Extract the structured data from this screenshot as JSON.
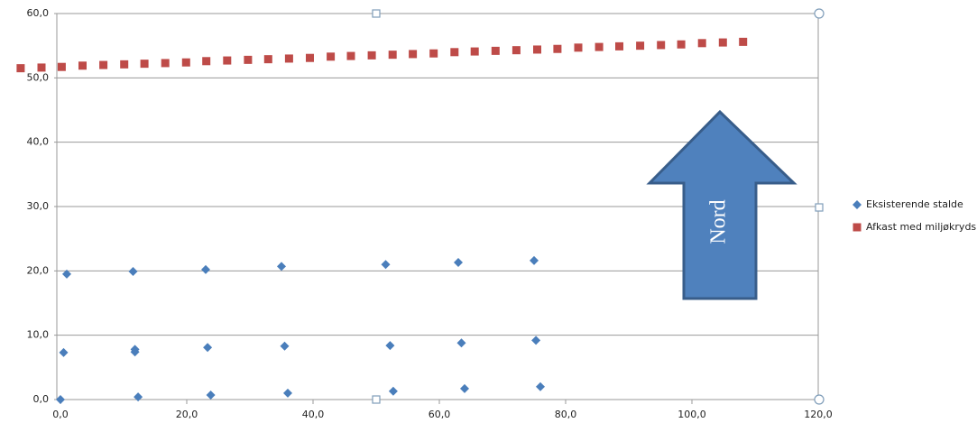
{
  "chart_data": {
    "type": "scatter",
    "xlim": [
      0,
      120
    ],
    "ylim": [
      0,
      60
    ],
    "xticks": [
      {
        "value": 0,
        "label": "0,0"
      },
      {
        "value": 20,
        "label": "20,0"
      },
      {
        "value": 40,
        "label": "40,0"
      },
      {
        "value": 60,
        "label": "60,0"
      },
      {
        "value": 80,
        "label": "80,0"
      },
      {
        "value": 100,
        "label": "100,0"
      },
      {
        "value": 120,
        "label": "120,0"
      }
    ],
    "yticks": [
      {
        "value": 0,
        "label": "0,0"
      },
      {
        "value": 10,
        "label": "10,0"
      },
      {
        "value": 20,
        "label": "20,0"
      },
      {
        "value": 30,
        "label": "30,0"
      },
      {
        "value": 40,
        "label": "40,0"
      },
      {
        "value": 50,
        "label": "50,0"
      },
      {
        "value": 60,
        "label": "60,0"
      }
    ],
    "grid": true,
    "legend": "right",
    "annotation": "Nord",
    "series": [
      {
        "name": "Eksisterende stalde",
        "color": "#4a7ebb",
        "marker": "diamond",
        "x": [
          1,
          11.5,
          23,
          35,
          51.5,
          63,
          75,
          0.5,
          11.8,
          11.8,
          23.3,
          35.5,
          52.2,
          63.5,
          75.3,
          0,
          12.3,
          23.8,
          36,
          52.7,
          64,
          76
        ],
        "values": [
          19.5,
          19.9,
          20.2,
          20.7,
          21,
          21.3,
          21.6,
          7.3,
          7.8,
          7.4,
          8.1,
          8.3,
          8.4,
          8.8,
          9.2,
          0,
          0.4,
          0.7,
          1,
          1.3,
          1.7,
          2
        ]
      },
      {
        "name": "Afkast med miljøkryds",
        "color": "#be4b48",
        "marker": "square",
        "x": [
          -6.3,
          -3.0,
          0.2,
          3.5,
          6.8,
          10.1,
          13.3,
          16.6,
          19.9,
          23.1,
          26.4,
          29.7,
          32.9,
          36.2,
          39.5,
          42.8,
          46.0,
          49.3,
          52.6,
          55.8,
          59.1,
          62.4,
          65.6,
          68.9,
          72.2,
          75.5,
          78.7,
          82.0,
          85.3,
          88.5,
          91.8,
          95.1,
          98.3,
          101.6,
          104.9,
          108.1
        ],
        "values": [
          51.5,
          51.6,
          51.7,
          51.9,
          52.0,
          52.1,
          52.2,
          52.3,
          52.4,
          52.6,
          52.7,
          52.8,
          52.9,
          53.0,
          53.1,
          53.3,
          53.4,
          53.5,
          53.6,
          53.7,
          53.8,
          54.0,
          54.1,
          54.2,
          54.3,
          54.4,
          54.5,
          54.7,
          54.8,
          54.9,
          55.0,
          55.1,
          55.2,
          55.4,
          55.5,
          55.6
        ]
      }
    ]
  }
}
